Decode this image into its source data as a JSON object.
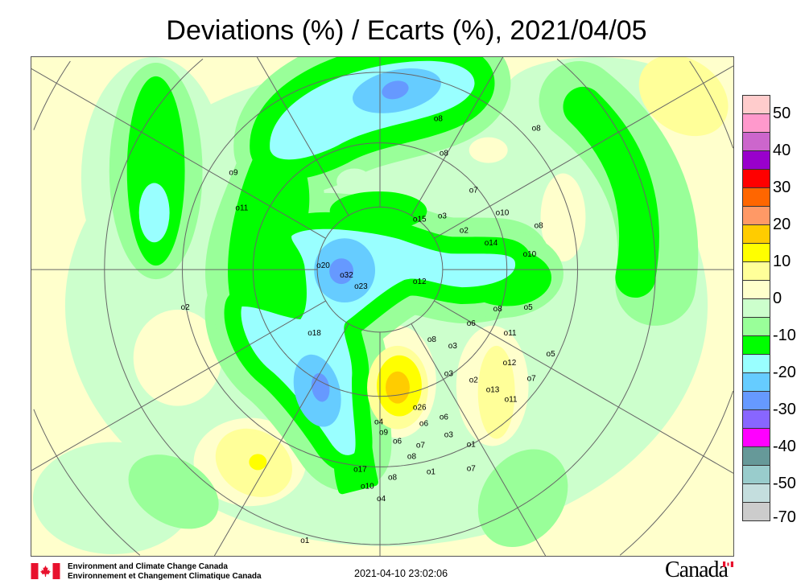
{
  "title": "Deviations (%) / Ecarts (%), 2021/04/05",
  "legend": {
    "colors": [
      "#ffcccc",
      "#ff99cc",
      "#cc66cc",
      "#9900cc",
      "#ff0000",
      "#ff6600",
      "#ff9966",
      "#ffcc00",
      "#ffff00",
      "#ffff99",
      "#ffffcc",
      "#ccffcc",
      "#99ff99",
      "#00ff00",
      "#99ffff",
      "#66ccff",
      "#6699ff",
      "#8866ff",
      "#ff00ff",
      "#669999",
      "#99cccc",
      "#c4dede",
      "#cccccc"
    ],
    "labels": [
      "50",
      "40",
      "30",
      "20",
      "10",
      "0",
      "-10",
      "-20",
      "-30",
      "-40",
      "-50",
      "-70"
    ]
  },
  "map": {
    "projection": "north polar stereographic",
    "contour_labels": [
      "8",
      "8",
      "8",
      "9",
      "11",
      "15",
      "3",
      "2",
      "7",
      "10",
      "14",
      "10",
      "8",
      "20",
      "32",
      "23",
      "12",
      "2",
      "18",
      "8",
      "5",
      "6",
      "11",
      "8",
      "3",
      "5",
      "12",
      "3",
      "2",
      "7",
      "13",
      "11",
      "26",
      "4",
      "6",
      "6",
      "9",
      "6",
      "3",
      "7",
      "1",
      "8",
      "17",
      "1",
      "7",
      "10",
      "8",
      "4",
      "1"
    ]
  },
  "footer": {
    "org_en": "Environment and Climate Change Canada",
    "org_fr": "Environnement et Changement Climatique Canada",
    "timestamp": "2021-04-10 23:02:06",
    "wordmark": "Canada"
  }
}
